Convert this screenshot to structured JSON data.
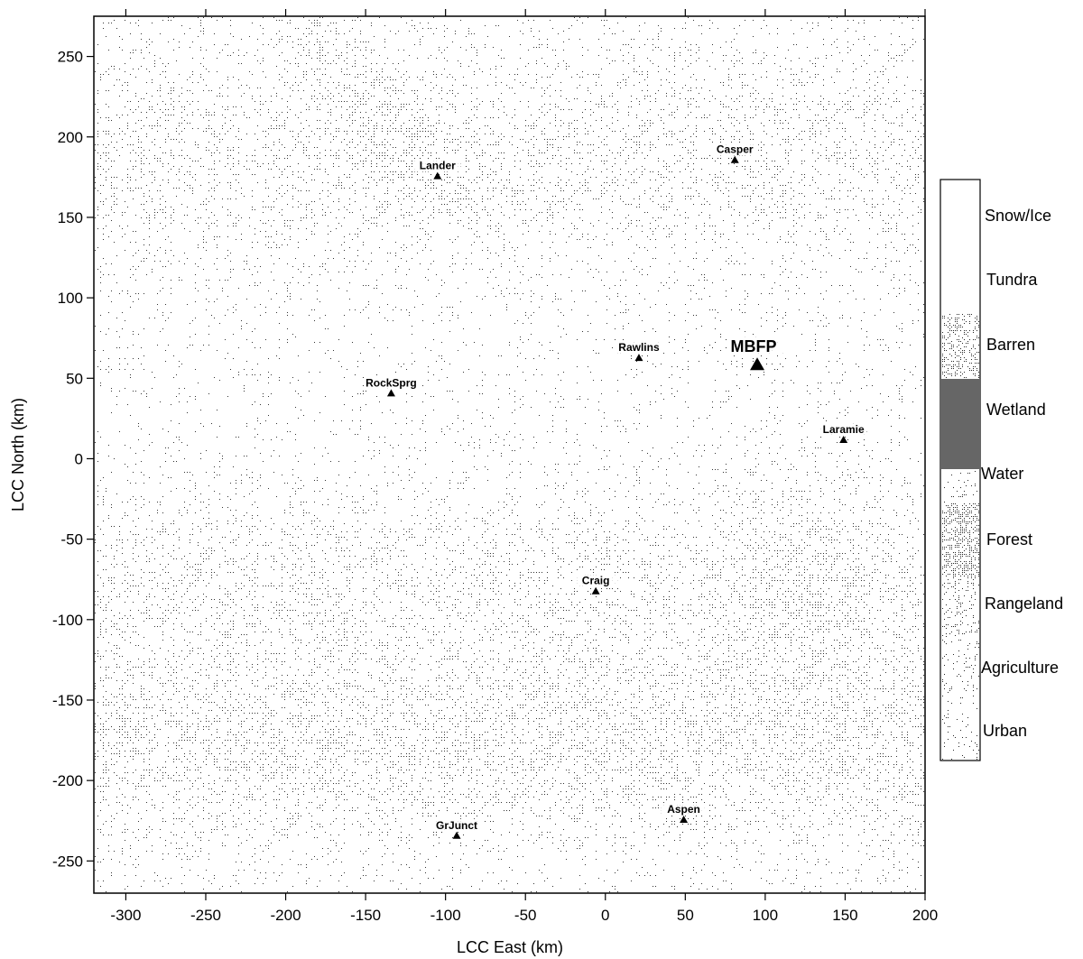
{
  "map": {
    "x_axis_title": "LCC East (km)",
    "y_axis_title": "LCC North (km)",
    "x_range": [
      -320,
      200
    ],
    "y_range": [
      -270,
      275
    ],
    "x_ticks": [
      -300,
      -250,
      -200,
      -150,
      -100,
      -50,
      0,
      50,
      100,
      150,
      200
    ],
    "y_ticks": [
      250,
      200,
      150,
      100,
      50,
      0,
      -50,
      -100,
      -150,
      -200,
      -250
    ],
    "places": [
      {
        "name": "Lander",
        "x": -105,
        "y": 176
      },
      {
        "name": "Casper",
        "x": 81,
        "y": 186
      },
      {
        "name": "Rawlins",
        "x": 21,
        "y": 63
      },
      {
        "name": "RockSprg",
        "x": -134,
        "y": 41
      },
      {
        "name": "Laramie",
        "x": 149,
        "y": 12
      },
      {
        "name": "Craig",
        "x": -6,
        "y": -82
      },
      {
        "name": "GrJunct",
        "x": -93,
        "y": -234
      },
      {
        "name": "Aspen",
        "x": 49,
        "y": -224
      }
    ],
    "site": {
      "name": "MBFP",
      "x": 95,
      "y": 59
    }
  },
  "legend": {
    "entries": [
      "Snow/Ice",
      "Tundra",
      "Barren",
      "Wetland",
      "Water",
      "Forest",
      "Rangeland",
      "Agriculture",
      "Urban"
    ]
  },
  "colors": {
    "background": "#ffffff",
    "stipple": "#000000",
    "wetland": "#555555"
  }
}
